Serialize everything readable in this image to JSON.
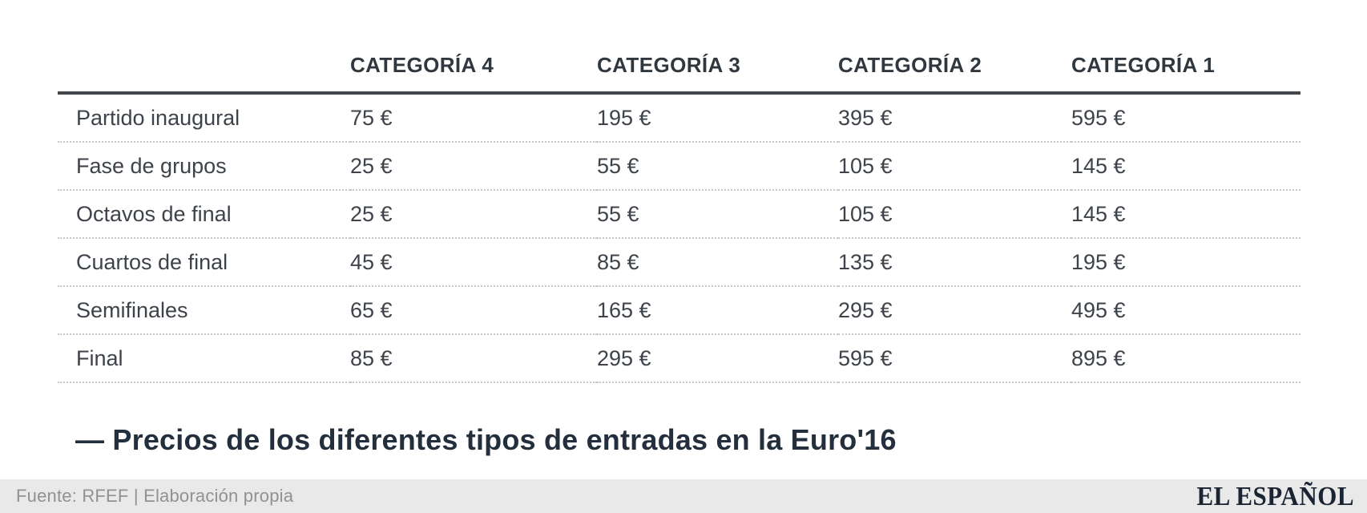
{
  "table": {
    "headers": [
      "",
      "CATEGORÍA 4",
      "CATEGORÍA 3",
      "CATEGORÍA 2",
      "CATEGORÍA 1"
    ],
    "rows": [
      {
        "label": "Partido inaugural",
        "values": [
          "75 €",
          "195 €",
          "395 €",
          "595 €"
        ]
      },
      {
        "label": "Fase de grupos",
        "values": [
          "25 €",
          "55 €",
          "105 €",
          "145 €"
        ]
      },
      {
        "label": "Octavos de final",
        "values": [
          "25 €",
          "55 €",
          "105 €",
          "145 €"
        ]
      },
      {
        "label": "Cuartos de final",
        "values": [
          "45 €",
          "85 €",
          "135 €",
          "195 €"
        ]
      },
      {
        "label": "Semifinales",
        "values": [
          "65 €",
          "165 €",
          "295 €",
          "495 €"
        ]
      },
      {
        "label": "Final",
        "values": [
          "85 €",
          "295 €",
          "595 €",
          "895 €"
        ]
      }
    ]
  },
  "caption": "— Precios de los diferentes tipos de entradas en la Euro'16",
  "footer": {
    "source": "Fuente: RFEF | Elaboración propia",
    "brand": "EL ESPAÑOL"
  },
  "colors": {
    "header_text": "#30373e",
    "body_text": "#3e434a",
    "caption_text": "#232f3c",
    "rule_dark": "#43474b",
    "rule_dotted": "#c7c9cb",
    "footer_bg": "#e9e9e9",
    "footer_text": "#8f9193",
    "brand_text": "#1b2432"
  },
  "chart_data": {
    "type": "table",
    "title": "Precios de los diferentes tipos de entradas en la Euro'16",
    "categories": [
      "CATEGORÍA 4",
      "CATEGORÍA 3",
      "CATEGORÍA 2",
      "CATEGORÍA 1"
    ],
    "row_labels": [
      "Partido inaugural",
      "Fase de grupos",
      "Octavos de final",
      "Cuartos de final",
      "Semifinales",
      "Final"
    ],
    "series": [
      {
        "name": "Partido inaugural",
        "values": [
          75,
          195,
          395,
          595
        ]
      },
      {
        "name": "Fase de grupos",
        "values": [
          25,
          55,
          105,
          145
        ]
      },
      {
        "name": "Octavos de final",
        "values": [
          25,
          55,
          105,
          145
        ]
      },
      {
        "name": "Cuartos de final",
        "values": [
          45,
          85,
          135,
          195
        ]
      },
      {
        "name": "Semifinales",
        "values": [
          65,
          165,
          295,
          495
        ]
      },
      {
        "name": "Final",
        "values": [
          85,
          295,
          595,
          895
        ]
      }
    ],
    "unit": "€",
    "source": "Fuente: RFEF | Elaboración propia",
    "legend_position": "none",
    "grid": "horizontal-dotted"
  }
}
